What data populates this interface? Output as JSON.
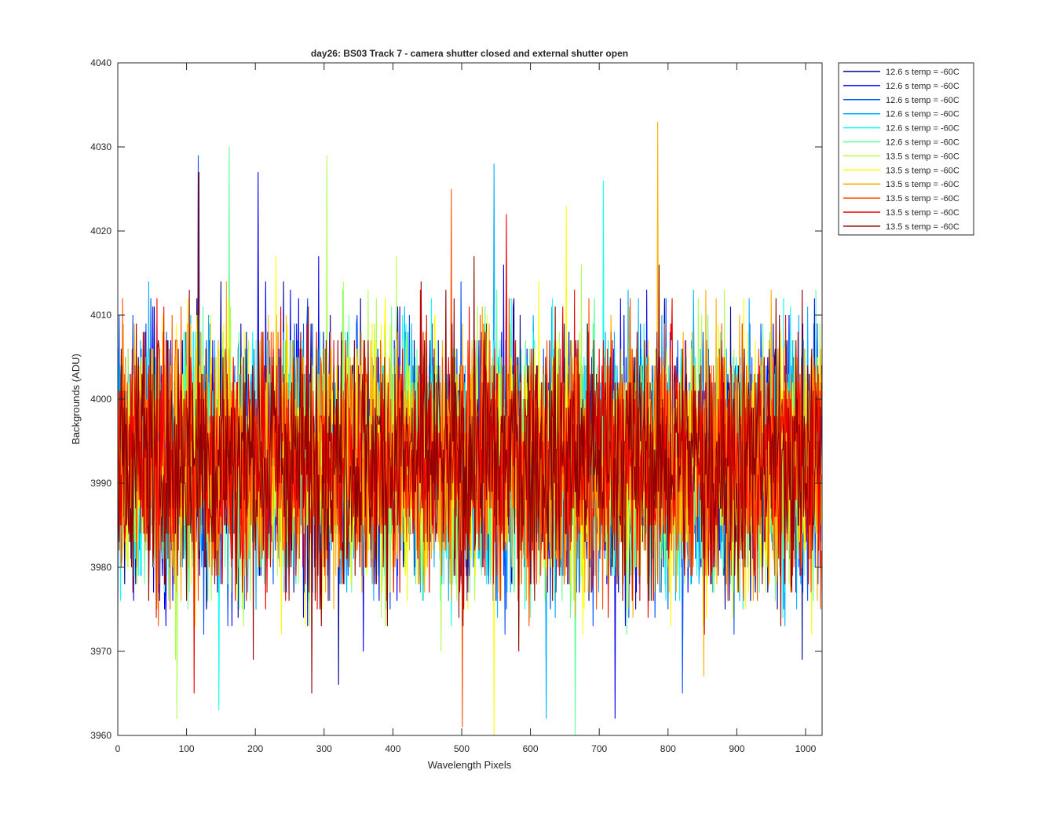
{
  "chart_data": {
    "type": "line",
    "title": "day26: BS03  Track 7 - camera shutter closed and external shutter open",
    "xlabel": "Wavelength Pixels",
    "ylabel": "Backgrounds (ADU)",
    "xlim": [
      0,
      1024
    ],
    "ylim": [
      3960,
      4040
    ],
    "xticks": [
      "0",
      "100",
      "200",
      "300",
      "400",
      "500",
      "600",
      "700",
      "800",
      "900",
      "1000"
    ],
    "yticks": [
      "3960",
      "3970",
      "3980",
      "3990",
      "4000",
      "4010",
      "4020",
      "4030",
      "4040"
    ],
    "grid": false,
    "legend_position": "outside-top-right",
    "points_per_series": 1024,
    "value_center": 3993,
    "value_spread": 7.5,
    "series": [
      {
        "name": "12.6 s temp = -60C",
        "color": "#00008f",
        "peak_x": 118,
        "peak_y": 4027,
        "low_x": 321,
        "low_y": 3966
      },
      {
        "name": "12.6 s temp = -60C",
        "color": "#0000ef",
        "peak_x": 204,
        "peak_y": 4027,
        "low_x": 723,
        "low_y": 3962
      },
      {
        "name": "12.6 s temp = -60C",
        "color": "#0050ff",
        "peak_x": 117,
        "peak_y": 4029,
        "low_x": 821,
        "low_y": 3965
      },
      {
        "name": "12.6 s temp = -60C",
        "color": "#00afff",
        "peak_x": 547,
        "peak_y": 4028,
        "low_x": 623,
        "low_y": 3962
      },
      {
        "name": "12.6 s temp = -60C",
        "color": "#10ffef",
        "peak_x": 706,
        "peak_y": 4026,
        "low_x": 147,
        "low_y": 3963
      },
      {
        "name": "12.6 s temp = -60C",
        "color": "#60ff9f",
        "peak_x": 162,
        "peak_y": 4030,
        "low_x": 665,
        "low_y": 3960
      },
      {
        "name": "13.5 s temp = -60C",
        "color": "#b0ff4f",
        "peak_x": 304,
        "peak_y": 4029,
        "low_x": 86,
        "low_y": 3962
      },
      {
        "name": "13.5 s temp = -60C",
        "color": "#ffff00",
        "peak_x": 652,
        "peak_y": 4023,
        "low_x": 547,
        "low_y": 3960
      },
      {
        "name": "13.5 s temp = -60C",
        "color": "#ffaf00",
        "peak_x": 785,
        "peak_y": 4033,
        "low_x": 852,
        "low_y": 3967
      },
      {
        "name": "13.5 s temp = -60C",
        "color": "#ff5000",
        "peak_x": 485,
        "peak_y": 4025,
        "low_x": 501,
        "low_y": 3961
      },
      {
        "name": "13.5 s temp = -60C",
        "color": "#ef0000",
        "peak_x": 565,
        "peak_y": 4022,
        "low_x": 111,
        "low_y": 3965
      },
      {
        "name": "13.5 s temp = -60C",
        "color": "#8f0000",
        "peak_x": 117,
        "peak_y": 4027,
        "low_x": 282,
        "low_y": 3965
      }
    ]
  }
}
